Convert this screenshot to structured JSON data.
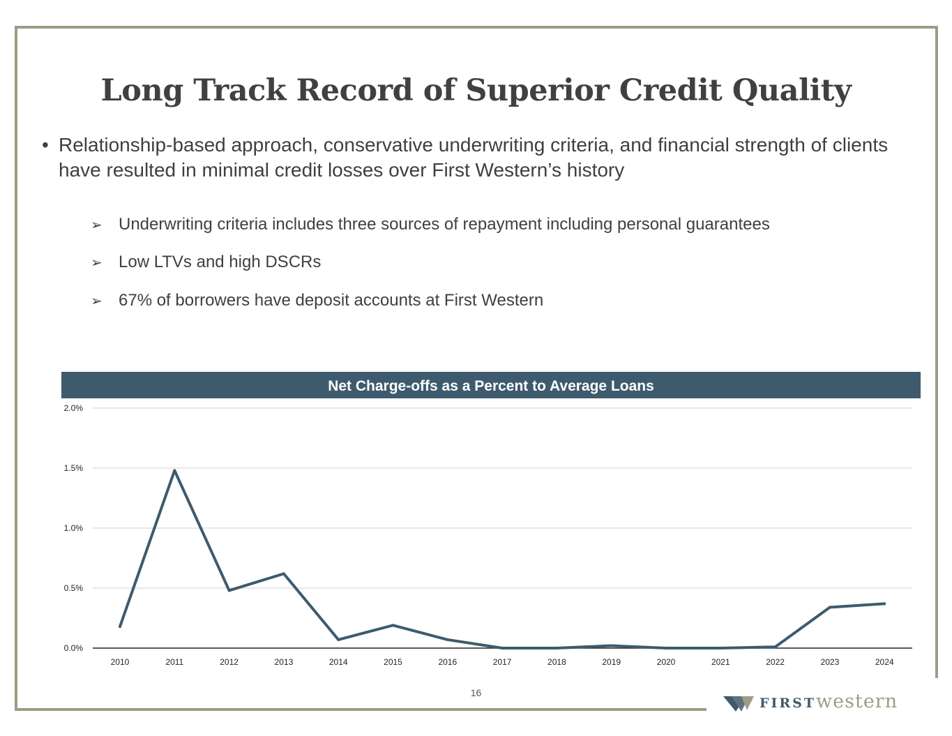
{
  "slide": {
    "title": "Long Track Record of Superior Credit Quality",
    "bullet_main": "Relationship-based approach, conservative underwriting criteria, and financial strength of clients have resulted in minimal credit losses over First Western’s history",
    "bullet_symbol": "•",
    "arrow_symbol": "➢",
    "sub_bullets": [
      "Underwriting criteria includes three sources of repayment including personal guarantees",
      "Low LTVs and high DSCRs",
      "67% of borrowers have deposit accounts at First Western"
    ],
    "page_number": "16"
  },
  "logo": {
    "first": "FIRST",
    "western": "western"
  },
  "colors": {
    "accent": "#3e5b6e",
    "frame": "#9c9d84",
    "text": "#3f3f3f",
    "grid": "#d9d9d9"
  },
  "chart_data": {
    "type": "line",
    "title": "Net Charge-offs as a Percent to Average Loans",
    "categories": [
      "2010",
      "2011",
      "2012",
      "2013",
      "2014",
      "2015",
      "2016",
      "2017",
      "2018",
      "2019",
      "2020",
      "2021",
      "2022",
      "2023",
      "2024"
    ],
    "series": [
      {
        "values": [
          0.18,
          1.48,
          0.48,
          0.62,
          0.07,
          0.19,
          0.07,
          0.0,
          0.0,
          0.02,
          0.0,
          0.0,
          0.01,
          0.34,
          0.37
        ]
      }
    ],
    "ylim": [
      0,
      2.0
    ],
    "yticks": [
      0.0,
      0.5,
      1.0,
      1.5,
      2.0
    ],
    "ytick_labels": [
      "0.0%",
      "0.5%",
      "1.0%",
      "1.5%",
      "2.0%"
    ],
    "grid": true,
    "legend": "none"
  }
}
